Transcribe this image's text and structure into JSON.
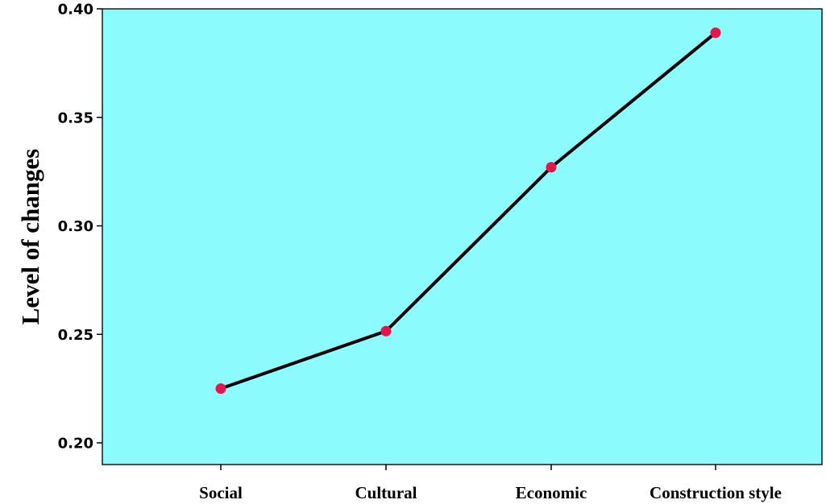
{
  "chart_data": {
    "type": "line",
    "title": "",
    "xlabel": "",
    "ylabel": "Level of changes",
    "categories": [
      "Social",
      "Cultural",
      "Economic",
      "Construction style"
    ],
    "series": [
      {
        "values": [
          0.225,
          0.2515,
          0.327,
          0.389
        ],
        "line_color": "#000000",
        "marker_color": "#e8144a"
      }
    ],
    "ylim": [
      0.19,
      0.4
    ],
    "yticks": [
      {
        "value": 0.2,
        "label": "0.20"
      },
      {
        "value": 0.25,
        "label": "0.25"
      },
      {
        "value": 0.3,
        "label": "0.30"
      },
      {
        "value": 0.35,
        "label": "0.35"
      },
      {
        "value": 0.4,
        "label": "0.40"
      }
    ],
    "grid": false,
    "legend": "none",
    "panel_background": "#8cfbfd"
  }
}
